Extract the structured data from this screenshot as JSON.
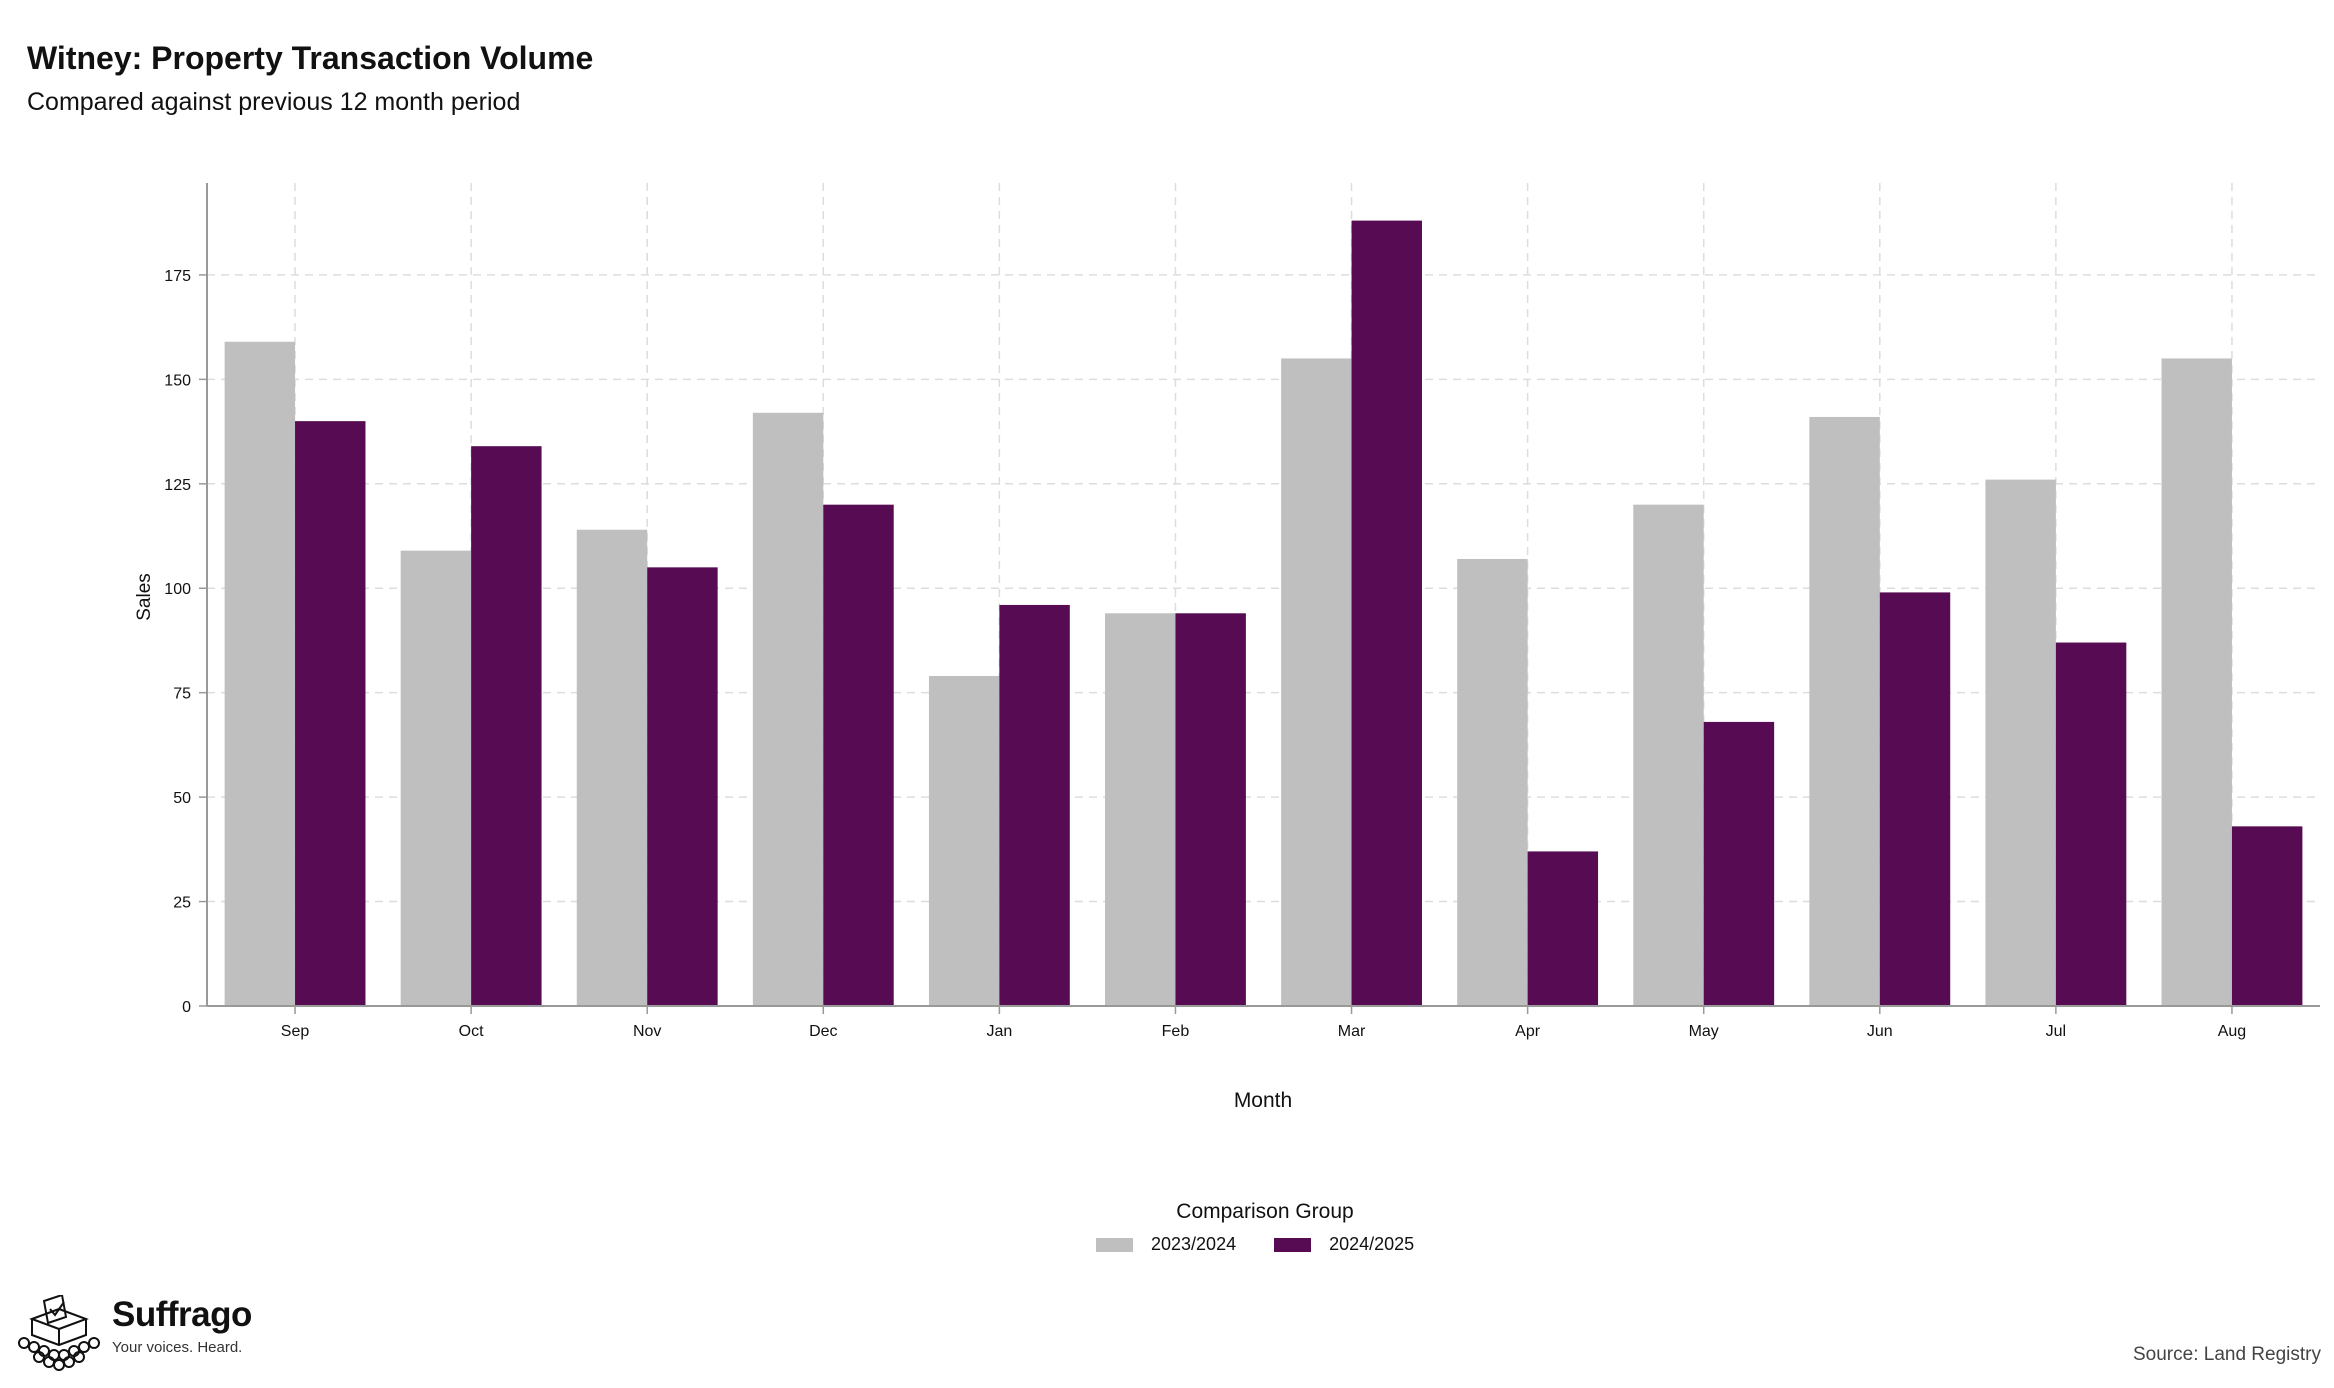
{
  "title": "Witney: Property Transaction Volume",
  "subtitle": "Compared against previous 12 month period",
  "source": "Source: Land Registry",
  "logo": {
    "brand": "Suffrago",
    "tagline": "Your voices. Heard."
  },
  "colors": {
    "series_a": "#bfbfbf",
    "series_b": "#560b52",
    "grid": "#dddddd",
    "axis": "#999999"
  },
  "chart_data": {
    "type": "bar",
    "title": "Witney: Property Transaction Volume",
    "subtitle": "Compared against previous 12 month period",
    "xlabel": "Month",
    "ylabel": "Sales",
    "categories": [
      "Sep",
      "Oct",
      "Nov",
      "Dec",
      "Jan",
      "Feb",
      "Mar",
      "Apr",
      "May",
      "Jun",
      "Jul",
      "Aug"
    ],
    "series": [
      {
        "name": "2023/2024",
        "values": [
          159,
          109,
          114,
          142,
          79,
          94,
          155,
          107,
          120,
          141,
          126,
          155
        ]
      },
      {
        "name": "2024/2025",
        "values": [
          140,
          134,
          105,
          120,
          96,
          94,
          188,
          37,
          68,
          99,
          87,
          43
        ]
      }
    ],
    "yticks": [
      0,
      25,
      50,
      75,
      100,
      125,
      150,
      175
    ],
    "ylim": [
      0,
      197
    ],
    "grid": true,
    "legend": {
      "title": "Comparison Group",
      "position": "bottom"
    }
  }
}
